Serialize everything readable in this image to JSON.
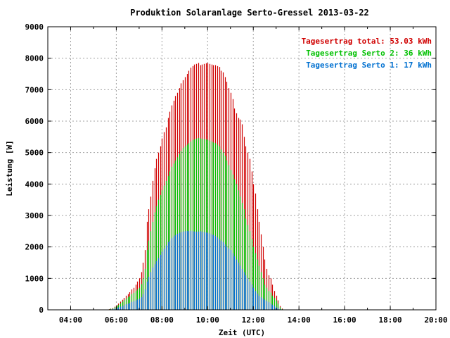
{
  "chart_data": {
    "type": "bar",
    "title": "Produktion Solaranlage Serto-Gressel 2013-03-22",
    "xlabel": "Zeit (UTC)",
    "ylabel": "Leistung [W]",
    "xlim": [
      3.0,
      20.0
    ],
    "ylim": [
      0,
      9000
    ],
    "xticks": [
      "04:00",
      "06:00",
      "08:00",
      "10:00",
      "12:00",
      "14:00",
      "16:00",
      "18:00",
      "20:00"
    ],
    "yticks": [
      "0",
      "1000",
      "2000",
      "3000",
      "4000",
      "5000",
      "6000",
      "7000",
      "8000",
      "9000"
    ],
    "grid": true,
    "legend_position": "top-right",
    "legend": [
      {
        "label": "Tagesertrag total: 53.03 kWh",
        "color": "#d00000"
      },
      {
        "label": "Tagesertrag Serto 2: 36 kWh",
        "color": "#00c000"
      },
      {
        "label": "Tagesertrag Serto 1: 17 kWh",
        "color": "#0070d0"
      }
    ],
    "x_start_hour": 5.67,
    "x_step_hours": 0.0833,
    "series": [
      {
        "name": "Tagesertrag total: 53.03 kWh",
        "color": "#d00000",
        "values": [
          20,
          40,
          60,
          100,
          150,
          200,
          260,
          320,
          380,
          450,
          500,
          560,
          650,
          700,
          800,
          900,
          1000,
          1200,
          1500,
          1900,
          2800,
          3200,
          3600,
          4100,
          4500,
          4800,
          5000,
          5200,
          5450,
          5650,
          5800,
          6100,
          6300,
          6500,
          6650,
          6800,
          6900,
          7050,
          7200,
          7300,
          7400,
          7500,
          7600,
          7700,
          7750,
          7800,
          7820,
          7850,
          7780,
          7800,
          7820,
          7840,
          7850,
          7820,
          7800,
          7780,
          7780,
          7750,
          7720,
          7600,
          7550,
          7400,
          7250,
          7050,
          6900,
          6700,
          6400,
          6250,
          6100,
          6050,
          5900,
          5500,
          5200,
          5000,
          4800,
          4400,
          4000,
          3700,
          3200,
          2800,
          2400,
          2000,
          1600,
          1300,
          1100,
          1000,
          800,
          600,
          450,
          300,
          120,
          40
        ]
      },
      {
        "name": "Tagesertrag Serto 2: 36 kWh",
        "color": "#00c000",
        "values": [
          15,
          30,
          45,
          80,
          120,
          160,
          210,
          260,
          310,
          360,
          400,
          440,
          500,
          540,
          600,
          650,
          700,
          820,
          1000,
          1300,
          1900,
          2200,
          2500,
          2800,
          3100,
          3300,
          3500,
          3650,
          3800,
          3950,
          4100,
          4250,
          4400,
          4550,
          4650,
          4750,
          4850,
          4950,
          5050,
          5150,
          5200,
          5250,
          5300,
          5350,
          5400,
          5420,
          5450,
          5460,
          5450,
          5440,
          5430,
          5420,
          5400,
          5380,
          5350,
          5320,
          5300,
          5250,
          5200,
          5100,
          5000,
          4900,
          4750,
          4600,
          4450,
          4300,
          4150,
          4000,
          3800,
          3600,
          3400,
          3200,
          2900,
          2700,
          2500,
          2250,
          2000,
          1800,
          1600,
          1400,
          1200,
          1000,
          800,
          700,
          600,
          550,
          450,
          380,
          300,
          200,
          80,
          20
        ]
      },
      {
        "name": "Tagesertrag Serto 1: 17 kWh",
        "color": "#0070d0",
        "values": [
          8,
          15,
          25,
          40,
          60,
          80,
          100,
          120,
          150,
          180,
          200,
          220,
          250,
          270,
          300,
          330,
          350,
          400,
          500,
          650,
          900,
          1050,
          1200,
          1350,
          1450,
          1550,
          1650,
          1750,
          1850,
          1950,
          2050,
          2150,
          2200,
          2280,
          2340,
          2380,
          2420,
          2450,
          2470,
          2490,
          2500,
          2510,
          2500,
          2510,
          2500,
          2490,
          2480,
          2490,
          2500,
          2480,
          2470,
          2460,
          2450,
          2430,
          2400,
          2380,
          2350,
          2300,
          2250,
          2200,
          2150,
          2080,
          2000,
          1950,
          1900,
          1800,
          1700,
          1600,
          1500,
          1400,
          1300,
          1200,
          1100,
          1000,
          900,
          800,
          700,
          600,
          520,
          450,
          400,
          360,
          320,
          280,
          240,
          200,
          160,
          120,
          80,
          50,
          20,
          5
        ]
      }
    ]
  }
}
